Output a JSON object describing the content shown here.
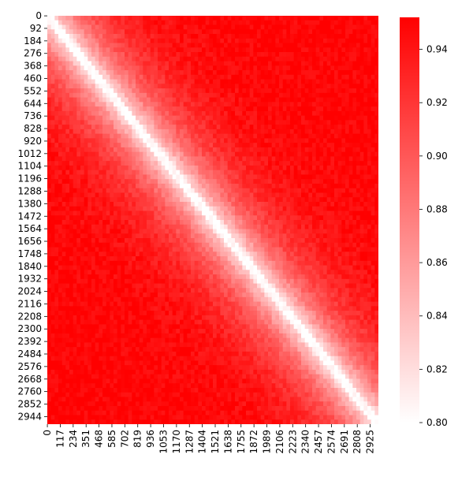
{
  "colors": {
    "low": "#ffffff",
    "high": "#ff0000",
    "axis": "#000000"
  },
  "chart_data": {
    "type": "heatmap",
    "title": "",
    "xlabel": "",
    "ylabel": "",
    "matrix_size": 3000,
    "value_range": [
      0.8,
      0.952
    ],
    "description_of_values": "correlation-like similarity matrix: near 0.80 on and close to the diagonal, rising to about 0.95 far from the diagonal; off-diagonal block in the upper-right and lower-left is saturated red",
    "x_tick_labels": [
      "0",
      "117",
      "234",
      "351",
      "468",
      "585",
      "702",
      "819",
      "936",
      "1053",
      "1170",
      "1287",
      "1404",
      "1521",
      "1638",
      "1755",
      "1872",
      "1989",
      "2106",
      "2223",
      "2340",
      "2457",
      "2574",
      "2691",
      "2808",
      "2925"
    ],
    "y_tick_labels": [
      "0",
      "92",
      "184",
      "276",
      "368",
      "460",
      "552",
      "644",
      "736",
      "828",
      "920",
      "1012",
      "1104",
      "1196",
      "1288",
      "1380",
      "1472",
      "1564",
      "1656",
      "1748",
      "1840",
      "1932",
      "2024",
      "2116",
      "2208",
      "2300",
      "2392",
      "2484",
      "2576",
      "2668",
      "2760",
      "2852",
      "2944"
    ],
    "colorbar": {
      "ticks": [
        "0.80",
        "0.82",
        "0.84",
        "0.86",
        "0.88",
        "0.90",
        "0.92",
        "0.94"
      ],
      "min": 0.8,
      "max": 0.952
    },
    "grid": false,
    "legend": "colorbar-right"
  }
}
